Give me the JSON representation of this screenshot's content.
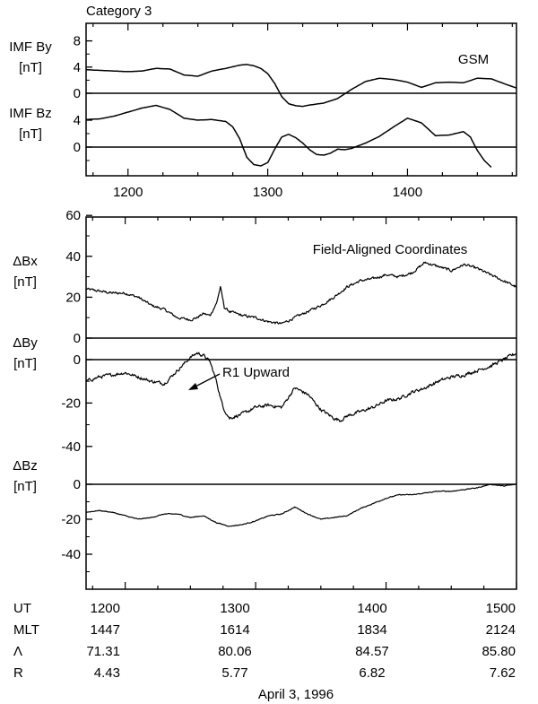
{
  "title": "Category 3",
  "date_label": "April 3, 1996",
  "colors": {
    "line": "#000000",
    "background": "#ffffff"
  },
  "chart_data": [
    {
      "type": "line",
      "panel": "imf",
      "annotation": "GSM",
      "xlim": [
        1170,
        1478
      ],
      "x_ticks": [
        1200,
        1300,
        1400
      ],
      "series": [
        {
          "label_line1": "IMF By",
          "label_line2": "[nT]",
          "y_ticks": [
            0,
            4,
            8
          ],
          "ylim": [
            -1,
            10
          ],
          "x": [
            1170,
            1180,
            1190,
            1200,
            1210,
            1220,
            1230,
            1240,
            1250,
            1260,
            1270,
            1280,
            1285,
            1290,
            1295,
            1300,
            1305,
            1310,
            1315,
            1320,
            1325,
            1330,
            1340,
            1350,
            1360,
            1370,
            1380,
            1390,
            1400,
            1410,
            1420,
            1430,
            1440,
            1450,
            1460,
            1470,
            1478
          ],
          "y": [
            3.6,
            3.5,
            3.4,
            3.3,
            3.4,
            3.8,
            3.7,
            2.8,
            2.6,
            3.4,
            3.8,
            4.3,
            4.4,
            4.2,
            3.8,
            3.0,
            1.5,
            -0.5,
            -1.6,
            -1.9,
            -2.0,
            -1.8,
            -1.5,
            -0.8,
            0.6,
            1.8,
            2.3,
            2.1,
            1.7,
            0.9,
            1.6,
            1.7,
            1.6,
            2.3,
            2.2,
            1.4,
            0.8
          ]
        },
        {
          "label_line1": "IMF Bz",
          "label_line2": "[nT]",
          "y_ticks": [
            0,
            4
          ],
          "ylim": [
            -4,
            6
          ],
          "x": [
            1170,
            1180,
            1190,
            1200,
            1210,
            1220,
            1230,
            1240,
            1250,
            1260,
            1270,
            1275,
            1280,
            1285,
            1290,
            1295,
            1300,
            1305,
            1310,
            1315,
            1320,
            1325,
            1330,
            1335,
            1340,
            1345,
            1350,
            1355,
            1360,
            1370,
            1380,
            1390,
            1400,
            1410,
            1420,
            1430,
            1440,
            1445,
            1450,
            1455,
            1460
          ],
          "y": [
            4.1,
            4.2,
            4.6,
            5.2,
            5.8,
            6.2,
            5.6,
            4.3,
            4.0,
            4.1,
            3.8,
            3.0,
            1.2,
            -1.5,
            -2.6,
            -2.8,
            -2.3,
            -0.3,
            1.5,
            1.9,
            1.4,
            0.6,
            -0.4,
            -1.1,
            -1.2,
            -0.9,
            -0.3,
            -0.4,
            -0.2,
            0.6,
            1.6,
            3.0,
            4.3,
            3.6,
            1.7,
            1.8,
            2.3,
            1.5,
            -0.5,
            -2.0,
            -3.0
          ]
        }
      ]
    },
    {
      "type": "line",
      "panel": "field",
      "annotation": "Field-Aligned Coordinates",
      "arrow_label": "R1 Upward",
      "xlim": [
        1170,
        1500
      ],
      "x_ticks": [
        1200,
        1300,
        1400,
        1500
      ],
      "series": [
        {
          "label_line1": "ΔBx",
          "label_line2": "[nT]",
          "y_ticks": [
            0,
            20,
            40,
            60
          ],
          "ylim": [
            0,
            60
          ],
          "x": [
            1170,
            1180,
            1190,
            1200,
            1210,
            1220,
            1230,
            1240,
            1250,
            1255,
            1260,
            1265,
            1270,
            1273,
            1276,
            1280,
            1290,
            1300,
            1310,
            1320,
            1330,
            1340,
            1350,
            1360,
            1370,
            1380,
            1390,
            1400,
            1410,
            1420,
            1430,
            1440,
            1450,
            1460,
            1470,
            1480,
            1490,
            1500
          ],
          "y": [
            24,
            23,
            22,
            22,
            20,
            16,
            14,
            10,
            9,
            10,
            12,
            11,
            17,
            25,
            15,
            13,
            11,
            10,
            8,
            7,
            10,
            13,
            16,
            20,
            25,
            28,
            29,
            31,
            30,
            32,
            37,
            35,
            33,
            36,
            34,
            31,
            28,
            25
          ],
          "noise": 2.2
        },
        {
          "label_line1": "ΔBy",
          "label_line2": "[nT]",
          "y_ticks": [
            -40,
            -20,
            0
          ],
          "ylim": [
            -50,
            5
          ],
          "x": [
            1170,
            1180,
            1190,
            1200,
            1210,
            1220,
            1230,
            1240,
            1250,
            1255,
            1260,
            1265,
            1270,
            1272,
            1275,
            1280,
            1290,
            1300,
            1310,
            1320,
            1330,
            1340,
            1350,
            1360,
            1365,
            1370,
            1380,
            1390,
            1400,
            1410,
            1420,
            1430,
            1440,
            1450,
            1460,
            1470,
            1480,
            1490,
            1500
          ],
          "y": [
            -10,
            -8,
            -7,
            -6,
            -8,
            -10,
            -11,
            -5,
            1,
            3,
            2,
            -1,
            -10,
            -15,
            -22,
            -27,
            -25,
            -22,
            -21,
            -22,
            -13,
            -16,
            -23,
            -27,
            -28,
            -26,
            -24,
            -22,
            -19,
            -18,
            -15,
            -13,
            -10,
            -8,
            -7,
            -5,
            -3,
            0,
            3
          ],
          "noise": 2.6
        },
        {
          "label_line1": "ΔBz",
          "label_line2": "[nT]",
          "y_ticks": [
            -40,
            -20,
            0
          ],
          "ylim": [
            -50,
            5
          ],
          "x": [
            1170,
            1180,
            1190,
            1200,
            1210,
            1220,
            1230,
            1240,
            1250,
            1260,
            1270,
            1280,
            1290,
            1300,
            1310,
            1320,
            1330,
            1340,
            1350,
            1360,
            1370,
            1380,
            1390,
            1400,
            1410,
            1420,
            1430,
            1440,
            1450,
            1460,
            1470,
            1480,
            1490,
            1500
          ],
          "y": [
            -16,
            -15,
            -16,
            -18,
            -20,
            -19,
            -17,
            -17,
            -19,
            -18,
            -22,
            -24,
            -23,
            -21,
            -18,
            -17,
            -13,
            -17,
            -20,
            -19,
            -18,
            -14,
            -11,
            -8,
            -6,
            -6,
            -5,
            -4,
            -4,
            -3,
            -2,
            0,
            -1,
            0
          ],
          "noise": 0.8
        }
      ]
    }
  ],
  "ephemeris": {
    "rows": [
      {
        "label": "UT",
        "values": [
          "1200",
          "1300",
          "1400",
          "1500"
        ]
      },
      {
        "label": "MLT",
        "values": [
          "1447",
          "1614",
          "1834",
          "2124"
        ]
      },
      {
        "label": "Λ",
        "values": [
          "71.31",
          "80.06",
          "84.57",
          "85.80"
        ]
      },
      {
        "label": "R",
        "values": [
          "4.43",
          "5.77",
          "6.82",
          "7.62"
        ]
      }
    ]
  }
}
